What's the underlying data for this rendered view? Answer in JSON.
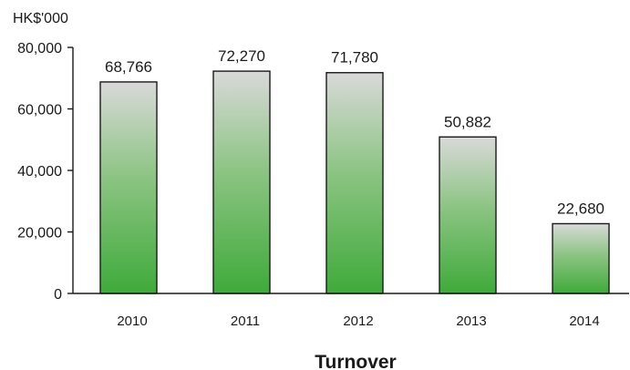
{
  "chart_data": {
    "type": "bar",
    "title": "Turnover",
    "ylabel": "HK$'000",
    "xlabel": "",
    "categories": [
      "2010",
      "2011",
      "2012",
      "2013",
      "2014"
    ],
    "values": [
      68766,
      72270,
      71780,
      50882,
      22680
    ],
    "value_labels": [
      "68,766",
      "72,270",
      "71,780",
      "50,882",
      "22,680"
    ],
    "ylim": [
      0,
      80000
    ],
    "yticks": [
      0,
      20000,
      40000,
      60000,
      80000
    ],
    "ytick_labels": [
      "0",
      "20,000",
      "40,000",
      "60,000",
      "80,000"
    ],
    "grid": false,
    "legend": "none",
    "colors": {
      "bar_top": "#d9d9d9",
      "bar_bottom": "#3faa3a",
      "axis": "#1a1a1a"
    }
  }
}
